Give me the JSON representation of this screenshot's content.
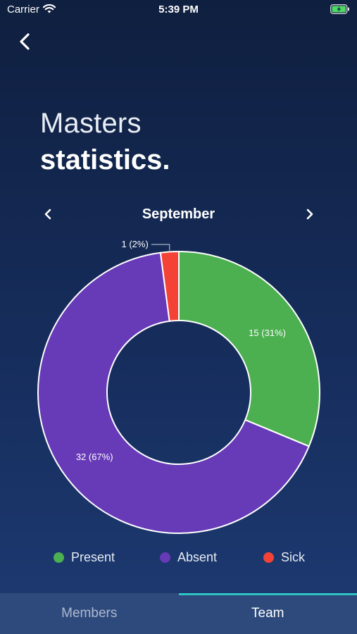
{
  "status_bar": {
    "carrier": "Carrier",
    "time": "5:39 PM",
    "battery_icon": "battery-charging-icon",
    "wifi_icon": "wifi-icon"
  },
  "header": {
    "back_icon": "chevron-left-icon",
    "title_line1": "Masters",
    "title_line2": "statistics."
  },
  "month_nav": {
    "label": "September",
    "prev_icon": "chevron-left-icon",
    "next_icon": "chevron-right-icon"
  },
  "legend": [
    {
      "label": "Present",
      "color": "#4caf50"
    },
    {
      "label": "Absent",
      "color": "#673ab7"
    },
    {
      "label": "Sick",
      "color": "#f44336"
    }
  ],
  "tabs": [
    {
      "label": "Members",
      "active": false
    },
    {
      "label": "Team",
      "active": true
    }
  ],
  "colors": {
    "accent": "#2ec4c4",
    "present": "#4caf50",
    "absent": "#673ab7",
    "sick": "#f44336"
  },
  "chart_data": {
    "type": "pie",
    "categories": [
      "Present",
      "Absent",
      "Sick"
    ],
    "values": [
      15,
      32,
      1
    ],
    "data_labels": [
      "15 (31%)",
      "32 (67%)",
      "1 (2%)"
    ],
    "colors": [
      "#4caf50",
      "#673ab7",
      "#f44336"
    ],
    "donut": true,
    "legend_placement": "bottom"
  }
}
